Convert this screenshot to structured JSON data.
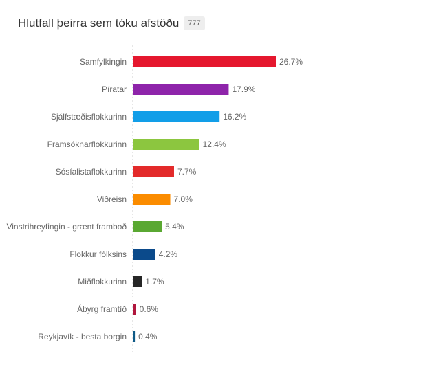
{
  "header": {
    "title": "Hlutfall þeirra sem tóku afstöðu",
    "count": "777"
  },
  "chart_data": {
    "type": "bar",
    "orientation": "horizontal",
    "title": "Hlutfall þeirra sem tóku afstöðu",
    "categories": [
      "Samfylkingin",
      "Píratar",
      "Sjálfstæðisflokkurinn",
      "Framsóknarflokkurinn",
      "Sósíalistaflokkurinn",
      "Viðreisn",
      "Vinstrihreyfingin - grænt framboð",
      "Flokkur fólksins",
      "Miðflokkurinn",
      "Ábyrg framtíð",
      "Reykjavík - besta borgin"
    ],
    "values": [
      26.7,
      17.9,
      16.2,
      12.4,
      7.7,
      7.0,
      5.4,
      4.2,
      1.7,
      0.6,
      0.4
    ],
    "value_labels": [
      "26.7%",
      "17.9%",
      "16.2%",
      "12.4%",
      "7.7%",
      "7.0%",
      "5.4%",
      "4.2%",
      "1.7%",
      "0.6%",
      "0.4%"
    ],
    "colors": [
      "#e5172e",
      "#8e24aa",
      "#129ee8",
      "#8cc63f",
      "#e32a2a",
      "#fb8c00",
      "#5aa832",
      "#0b4a8b",
      "#262626",
      "#b0163d",
      "#0e5a87"
    ],
    "unit": "%",
    "xlim": [
      0,
      27
    ],
    "grid": false
  }
}
